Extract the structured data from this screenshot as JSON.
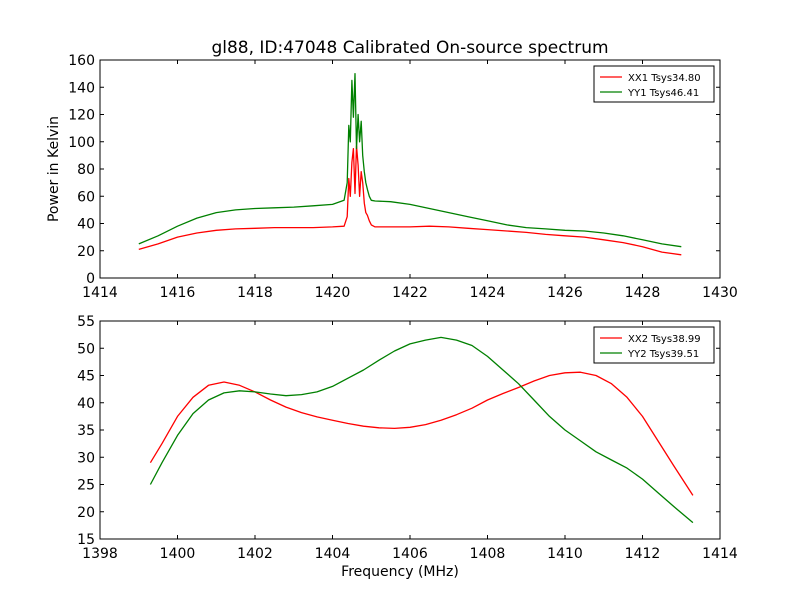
{
  "figure": {
    "title": "gl88, ID:47048 Calibrated On-source spectrum"
  },
  "colors": {
    "red": "#ff0000",
    "green": "#008000",
    "axes": "#000000",
    "background": "#ffffff"
  },
  "chart_data": [
    {
      "type": "line",
      "title": "gl88, ID:47048 Calibrated On-source spectrum",
      "xlabel": "",
      "ylabel": "Power in Kelvin",
      "xlim": [
        1414,
        1430
      ],
      "ylim": [
        0,
        160
      ],
      "xticks": [
        1414,
        1416,
        1418,
        1420,
        1422,
        1424,
        1426,
        1428,
        1430
      ],
      "yticks": [
        0,
        20,
        40,
        60,
        80,
        100,
        120,
        140,
        160
      ],
      "grid": false,
      "legend_position": "top-right",
      "series": [
        {
          "name": "XX1 Tsys34.80",
          "color": "#ff0000",
          "x": [
            1415.0,
            1415.5,
            1416.0,
            1416.5,
            1417.0,
            1417.5,
            1418.0,
            1418.5,
            1419.0,
            1419.5,
            1420.0,
            1420.3,
            1420.38,
            1420.42,
            1420.46,
            1420.5,
            1420.54,
            1420.58,
            1420.62,
            1420.66,
            1420.7,
            1420.74,
            1420.78,
            1420.82,
            1420.86,
            1420.9,
            1420.95,
            1421.0,
            1421.1,
            1421.5,
            1422.0,
            1422.5,
            1423.0,
            1423.5,
            1424.0,
            1424.5,
            1425.0,
            1425.5,
            1426.0,
            1426.5,
            1427.0,
            1427.5,
            1428.0,
            1428.5,
            1429.0
          ],
          "y": [
            21,
            25,
            30,
            33,
            35,
            36,
            36.5,
            37,
            37,
            37,
            37.5,
            38,
            45,
            73,
            60,
            85,
            95,
            62,
            97,
            83,
            60,
            78,
            70,
            55,
            48,
            46,
            42,
            39,
            37.5,
            37.5,
            37.5,
            38,
            37.5,
            36.5,
            35.5,
            34.5,
            33.5,
            32,
            31,
            30,
            28,
            26,
            23,
            19,
            17
          ]
        },
        {
          "name": "YY1 Tsys46.41",
          "color": "#008000",
          "x": [
            1415.0,
            1415.5,
            1416.0,
            1416.5,
            1417.0,
            1417.5,
            1418.0,
            1418.5,
            1419.0,
            1419.5,
            1420.0,
            1420.3,
            1420.38,
            1420.42,
            1420.46,
            1420.5,
            1420.54,
            1420.58,
            1420.62,
            1420.66,
            1420.7,
            1420.74,
            1420.78,
            1420.82,
            1420.86,
            1420.9,
            1420.95,
            1421.0,
            1421.1,
            1421.5,
            1422.0,
            1422.5,
            1423.0,
            1423.5,
            1424.0,
            1424.5,
            1425.0,
            1425.5,
            1426.0,
            1426.5,
            1427.0,
            1427.5,
            1428.0,
            1428.5,
            1429.0
          ],
          "y": [
            25,
            31,
            38,
            44,
            48,
            50,
            51,
            51.5,
            52,
            53,
            54,
            57,
            70,
            112,
            100,
            145,
            118,
            150,
            95,
            120,
            100,
            115,
            90,
            78,
            70,
            65,
            60,
            57,
            56.5,
            56,
            54,
            51,
            48,
            45,
            42,
            39,
            37,
            36,
            35,
            34.5,
            33,
            31,
            28,
            25,
            23
          ]
        }
      ]
    },
    {
      "type": "line",
      "title": "",
      "xlabel": "Frequency (MHz)",
      "ylabel": "",
      "xlim": [
        1398,
        1414
      ],
      "ylim": [
        15,
        55
      ],
      "xticks": [
        1398,
        1400,
        1402,
        1404,
        1406,
        1408,
        1410,
        1412,
        1414
      ],
      "yticks": [
        15,
        20,
        25,
        30,
        35,
        40,
        45,
        50,
        55
      ],
      "grid": false,
      "legend_position": "top-right",
      "series": [
        {
          "name": "XX2 Tsys38.99",
          "color": "#ff0000",
          "x": [
            1399.3,
            1399.6,
            1400.0,
            1400.4,
            1400.8,
            1401.2,
            1401.6,
            1402.0,
            1402.4,
            1402.8,
            1403.2,
            1403.6,
            1404.0,
            1404.4,
            1404.8,
            1405.2,
            1405.6,
            1406.0,
            1406.4,
            1406.8,
            1407.2,
            1407.6,
            1408.0,
            1408.4,
            1408.8,
            1409.2,
            1409.6,
            1410.0,
            1410.4,
            1410.8,
            1411.2,
            1411.6,
            1412.0,
            1412.4,
            1412.8,
            1413.3
          ],
          "y": [
            29,
            32.5,
            37.5,
            41,
            43.2,
            43.8,
            43.2,
            42,
            40.5,
            39.2,
            38.2,
            37.4,
            36.8,
            36.2,
            35.7,
            35.4,
            35.3,
            35.5,
            36,
            36.8,
            37.8,
            39,
            40.5,
            41.7,
            42.8,
            44,
            45,
            45.5,
            45.6,
            45,
            43.5,
            41,
            37.5,
            33,
            28.5,
            23
          ]
        },
        {
          "name": "YY2 Tsys39.51",
          "color": "#008000",
          "x": [
            1399.3,
            1399.6,
            1400.0,
            1400.4,
            1400.8,
            1401.2,
            1401.6,
            1402.0,
            1402.4,
            1402.8,
            1403.2,
            1403.6,
            1404.0,
            1404.4,
            1404.8,
            1405.2,
            1405.6,
            1406.0,
            1406.4,
            1406.8,
            1407.2,
            1407.6,
            1408.0,
            1408.4,
            1408.8,
            1409.2,
            1409.6,
            1410.0,
            1410.4,
            1410.8,
            1411.2,
            1411.6,
            1412.0,
            1412.4,
            1412.8,
            1413.3
          ],
          "y": [
            25,
            29,
            34,
            38,
            40.5,
            41.8,
            42.2,
            42,
            41.6,
            41.3,
            41.5,
            42,
            43,
            44.5,
            46,
            47.8,
            49.5,
            50.8,
            51.5,
            52,
            51.5,
            50.5,
            48.5,
            46,
            43.5,
            40.5,
            37.5,
            35,
            33,
            31,
            29.5,
            28,
            26,
            23.5,
            21,
            18
          ]
        }
      ]
    }
  ]
}
